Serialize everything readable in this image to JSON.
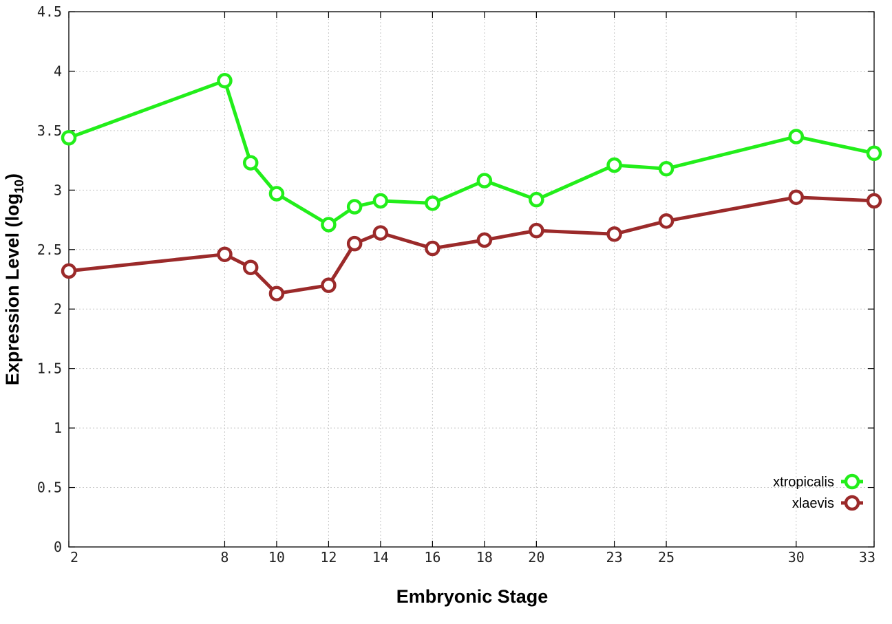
{
  "chart_data": {
    "type": "line",
    "title": "",
    "xlabel": "Embryonic Stage",
    "ylabel": "Expression Level (log",
    "ylabel_sub": "10",
    "ylabel_close": ")",
    "x": [
      2,
      8,
      9,
      10,
      12,
      13,
      14,
      16,
      18,
      20,
      23,
      25,
      30,
      33
    ],
    "x_ticks": [
      2,
      8,
      10,
      12,
      14,
      16,
      18,
      20,
      23,
      25,
      30,
      33
    ],
    "x_tick_labels": [
      "2",
      "8",
      "10",
      "12",
      "14",
      "16",
      "18",
      "20",
      "23",
      "25",
      "30",
      "33"
    ],
    "ylim": [
      0,
      4.5
    ],
    "y_ticks": [
      0,
      0.5,
      1,
      1.5,
      2,
      2.5,
      3,
      3.5,
      4,
      4.5
    ],
    "y_tick_labels": [
      "0",
      "0.5",
      "1",
      "1.5",
      "2",
      "2.5",
      "3",
      "3.5",
      "4",
      "4.5"
    ],
    "grid": true,
    "legend_position": "bottom-right",
    "series": [
      {
        "name": "xtropicalis",
        "color": "#22ee1a",
        "marker": "open-circle",
        "values": [
          3.44,
          3.92,
          3.23,
          2.97,
          2.71,
          2.86,
          2.91,
          2.89,
          3.08,
          2.92,
          3.21,
          3.18,
          3.45,
          3.31
        ]
      },
      {
        "name": "xlaevis",
        "color": "#9b2a2a",
        "marker": "open-circle",
        "values": [
          2.32,
          2.46,
          2.35,
          2.13,
          2.2,
          2.55,
          2.64,
          2.51,
          2.58,
          2.66,
          2.63,
          2.74,
          2.94,
          2.91
        ]
      }
    ]
  }
}
